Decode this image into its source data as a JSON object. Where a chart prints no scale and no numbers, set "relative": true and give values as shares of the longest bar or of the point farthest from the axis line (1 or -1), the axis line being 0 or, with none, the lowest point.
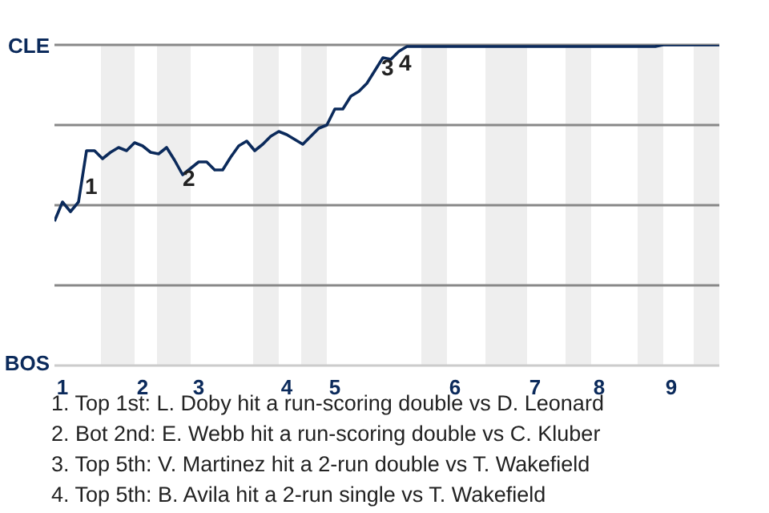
{
  "chart_data": {
    "type": "line",
    "relative": true,
    "categories": [
      null,
      "1",
      null,
      null,
      null,
      null,
      null,
      null,
      null,
      null,
      null,
      "2",
      null,
      null,
      null,
      null,
      null,
      null,
      "3",
      null,
      null,
      null,
      null,
      null,
      null,
      null,
      null,
      null,
      null,
      "4",
      null,
      null,
      null,
      null,
      null,
      "5",
      null,
      null,
      null,
      null,
      null,
      null,
      null,
      null,
      null,
      null,
      null,
      null,
      null,
      null,
      "6",
      null,
      null,
      null,
      null,
      null,
      null,
      null,
      null,
      null,
      "7",
      null,
      null,
      null,
      null,
      null,
      null,
      null,
      "8",
      null,
      null,
      null,
      null,
      null,
      null,
      null,
      null,
      "9",
      null,
      null,
      null,
      null,
      null,
      null
    ],
    "series": [
      {
        "color": "#0b2a5b",
        "values": [
          0.45,
          0.51,
          0.48,
          0.51,
          0.67,
          0.67,
          0.645,
          0.665,
          0.68,
          0.67,
          0.695,
          0.685,
          0.665,
          0.66,
          0.68,
          0.64,
          0.595,
          0.615,
          0.635,
          0.635,
          0.61,
          0.61,
          0.65,
          0.685,
          0.7,
          0.67,
          0.69,
          0.715,
          0.73,
          0.72,
          0.705,
          0.69,
          0.715,
          0.74,
          0.75,
          0.8,
          0.8,
          0.84,
          0.855,
          0.88,
          0.92,
          0.96,
          0.955,
          0.98,
          0.995,
          0.995,
          0.995,
          0.995,
          0.995,
          0.995,
          0.995,
          0.995,
          0.995,
          0.995,
          0.995,
          0.995,
          0.995,
          0.995,
          0.995,
          0.995,
          0.995,
          0.995,
          0.995,
          0.995,
          0.995,
          0.995,
          0.995,
          0.995,
          0.995,
          0.995,
          0.995,
          0.995,
          0.995,
          0.995,
          0.995,
          0.995,
          1,
          1,
          1,
          1,
          1,
          1,
          1,
          1
        ]
      }
    ],
    "ref_lines": [
      {
        "axis": "y",
        "value": 1,
        "label": "CLE",
        "color": "#888888"
      },
      {
        "axis": "y",
        "value": 0.75,
        "color": "#888888"
      },
      {
        "axis": "y",
        "value": 0.5,
        "color": "#888888"
      },
      {
        "axis": "y",
        "value": 0.25,
        "color": "#888888"
      }
    ],
    "annotations": [
      "1",
      "2",
      "3",
      "4",
      "1. Top 1st: L. Doby hit a run-scoring double vs D. Leonard",
      "2. Bot 2nd: E. Webb hit a run-scoring double vs C. Kluber",
      "3. Top 5th: V. Martinez hit a 2-run double vs T. Wakefield",
      "4. Top 5th: B. Avila hit a 2-run single vs T. Wakefield",
      "BOS"
    ]
  }
}
